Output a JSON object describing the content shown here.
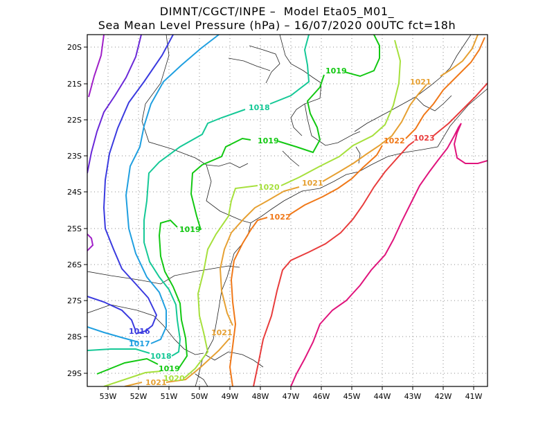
{
  "title_line1": "DIMNT/CGCT/INPE –  Model Eta05_M01_",
  "title_line2": "Sea Mean Level Pressure (hPa) – 16/07/2020 00UTC fct=18h",
  "map": {
    "lon_range": [
      -53.6,
      -40.5
    ],
    "lat_range": [
      -29.4,
      -19.6
    ],
    "lon_ticks": [
      "53W",
      "52W",
      "51W",
      "50W",
      "49W",
      "48W",
      "47W",
      "46W",
      "45W",
      "44W",
      "43W",
      "42W",
      "41W"
    ],
    "lat_ticks": [
      "20S",
      "21S",
      "22S",
      "23S",
      "24S",
      "25S",
      "26S",
      "27S",
      "28S",
      "29S"
    ],
    "grid": "dotted"
  },
  "contours": [
    {
      "level": 1016,
      "color": "#3a3adf"
    },
    {
      "level": 1017,
      "color": "#1f9fe0"
    },
    {
      "level": 1018,
      "color": "#14c896"
    },
    {
      "level": 1019,
      "color": "#12c812"
    },
    {
      "level": 1020,
      "color": "#a6e03c"
    },
    {
      "level": 1021,
      "color": "#e6a032"
    },
    {
      "level": 1022,
      "color": "#f07818"
    },
    {
      "level": 1023,
      "color": "#e83c3c"
    }
  ],
  "contour_labels": [
    {
      "text": "1016",
      "color": "#3a3adf"
    },
    {
      "text": "1017",
      "color": "#1f9fe0"
    },
    {
      "text": "1018",
      "color": "#14c896"
    },
    {
      "text": "1018",
      "color": "#14c896"
    },
    {
      "text": "1019",
      "color": "#12c812"
    },
    {
      "text": "1019",
      "color": "#12c812"
    },
    {
      "text": "1019",
      "color": "#12c812"
    },
    {
      "text": "1019",
      "color": "#12c812"
    },
    {
      "text": "1020",
      "color": "#a6e03c"
    },
    {
      "text": "1020",
      "color": "#a6e03c"
    },
    {
      "text": "1021",
      "color": "#e6a032"
    },
    {
      "text": "1021",
      "color": "#e6a032"
    },
    {
      "text": "1021",
      "color": "#e6a032"
    },
    {
      "text": "1021",
      "color": "#e6a032"
    },
    {
      "text": "1022",
      "color": "#f07818"
    },
    {
      "text": "1022",
      "color": "#f07818"
    },
    {
      "text": "1023",
      "color": "#e83c3c"
    }
  ]
}
